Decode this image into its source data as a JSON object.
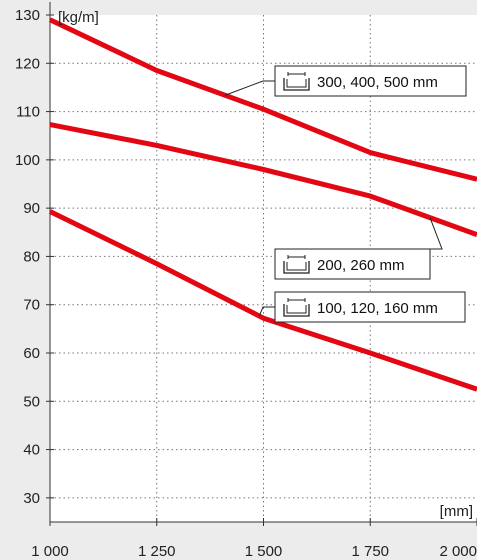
{
  "chart_data": {
    "type": "line",
    "ylabel": "[kg/m]",
    "xlabel": "[mm]",
    "x_ticks": [
      "1 000",
      "1 250",
      "1 500",
      "1 750",
      "2 000"
    ],
    "x_tick_values": [
      1000,
      1250,
      1500,
      1750,
      2000
    ],
    "y_ticks": [
      "30",
      "40",
      "50",
      "60",
      "70",
      "80",
      "90",
      "100",
      "110",
      "120",
      "130"
    ],
    "y_tick_values": [
      30,
      40,
      50,
      60,
      70,
      80,
      90,
      100,
      110,
      120,
      130
    ],
    "xlim": [
      1000,
      2000
    ],
    "ylim": [
      25,
      130
    ],
    "grid": true,
    "line_color": "#e30613",
    "series": [
      {
        "name": "300, 400, 500 mm",
        "x": [
          1000,
          1250,
          1500,
          1750,
          2000
        ],
        "y": [
          129,
          118.5,
          110.5,
          101.5,
          96
        ]
      },
      {
        "name": "200, 260 mm",
        "x": [
          1000,
          1250,
          1500,
          1750,
          2000
        ],
        "y": [
          107.3,
          103,
          98,
          92.5,
          84.5
        ]
      },
      {
        "name": "100, 120, 160 mm",
        "x": [
          1000,
          1250,
          1500,
          1750,
          2000
        ],
        "y": [
          89.3,
          78.5,
          67.2,
          60,
          52.5
        ]
      }
    ]
  }
}
